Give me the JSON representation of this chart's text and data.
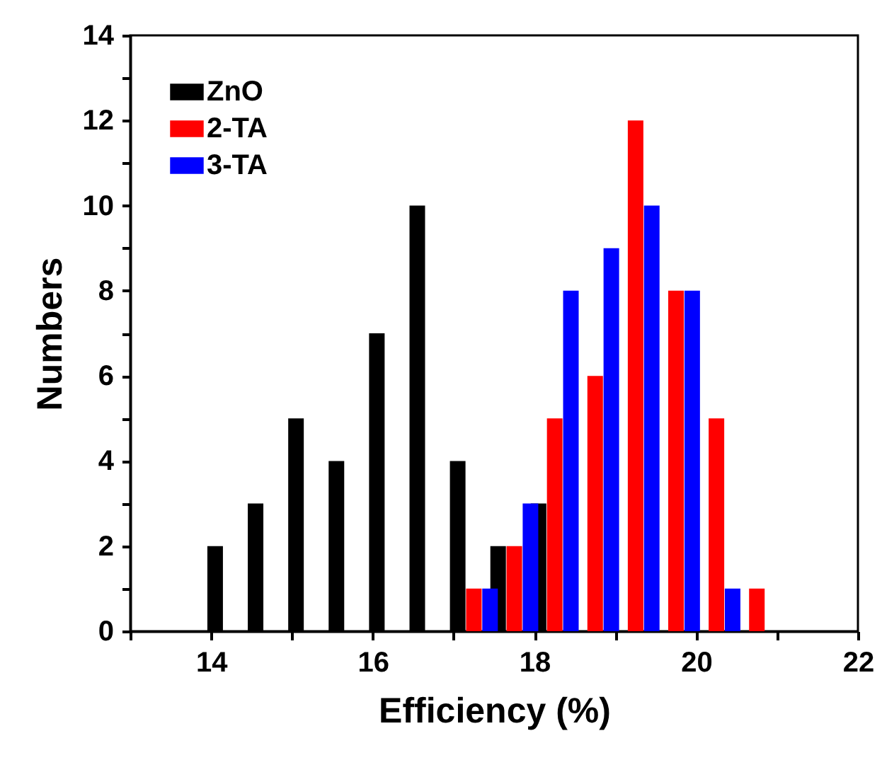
{
  "chart_data": {
    "type": "bar",
    "xlabel": "Efficiency (%)",
    "ylabel": "Numbers",
    "series": [
      {
        "name": "ZnO",
        "color": "#000000",
        "x": [
          14.05,
          14.55,
          15.05,
          15.55,
          16.05,
          16.55,
          17.05,
          17.55,
          18.05
        ],
        "values": [
          2,
          3,
          5,
          4,
          7,
          10,
          4,
          2,
          3
        ]
      },
      {
        "name": "2-TA",
        "color": "#ff0000",
        "x": [
          17.25,
          17.75,
          18.25,
          18.75,
          19.25,
          19.75,
          20.25,
          20.75
        ],
        "values": [
          1,
          2,
          5,
          6,
          12,
          8,
          5,
          1
        ]
      },
      {
        "name": "3-TA",
        "color": "#0000ff",
        "x": [
          17.45,
          17.95,
          18.45,
          18.95,
          19.45,
          19.95,
          20.45
        ],
        "values": [
          1,
          3,
          8,
          9,
          10,
          8,
          1
        ]
      }
    ],
    "xlim": [
      13,
      22
    ],
    "xticks": [
      {
        "value": 13,
        "label": null
      },
      14,
      {
        "value": 15,
        "label": null
      },
      16,
      {
        "value": 17,
        "label": null
      },
      18,
      {
        "value": 19,
        "label": null
      },
      20,
      {
        "value": 21,
        "label": null
      },
      22
    ],
    "ylim": [
      0,
      14
    ],
    "yticks": [
      0,
      {
        "value": 1,
        "label": null
      },
      2,
      {
        "value": 3,
        "label": null
      },
      4,
      {
        "value": 5,
        "label": null
      },
      6,
      {
        "value": 7,
        "label": null
      },
      8,
      {
        "value": 9,
        "label": null
      },
      10,
      {
        "value": 11,
        "label": null
      },
      12,
      {
        "value": 13,
        "label": null
      },
      14
    ],
    "legend": "top left",
    "grid": false
  }
}
